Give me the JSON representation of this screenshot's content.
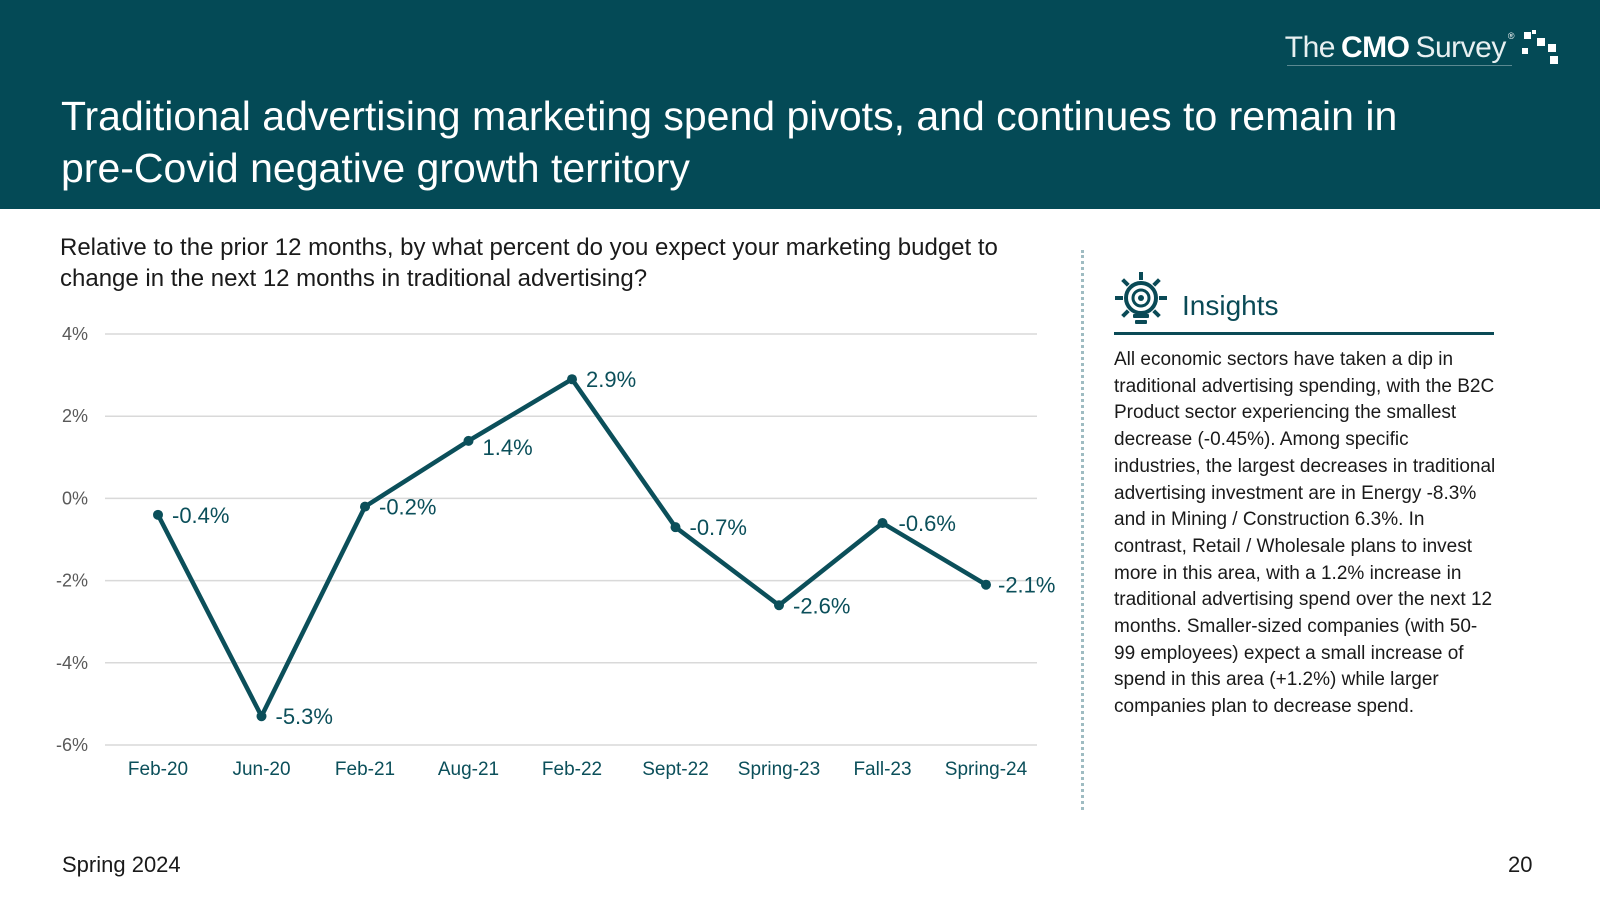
{
  "brand": {
    "the": "The",
    "cmo": "CMO",
    "survey": "Survey",
    "reg": "®"
  },
  "title": "Traditional advertising marketing spend pivots, and continues to remain in pre-Covid negative growth territory",
  "question": "Relative to the prior 12 months, by what percent do you expect your marketing budget to change in the next 12 months in traditional advertising?",
  "insights": {
    "title": "Insights",
    "icon": "lightbulb-gear-icon",
    "body": "All economic sectors have taken a dip in traditional advertising spending, with the B2C Product sector experiencing the smallest decrease (-0.45%). Among specific industries, the largest decreases in traditional advertising investment are in Energy -8.3% and in Mining / Construction 6.3%. In contrast, Retail / Wholesale plans to invest more in this area, with a 1.2% increase in traditional advertising spend over the next 12 months. Smaller-sized companies (with 50-99 employees) expect a small increase of spend in this area (+1.2%) while larger companies plan to decrease spend."
  },
  "footer": {
    "left": "Spring 2024",
    "page": "20"
  },
  "colors": {
    "header": "#044a56",
    "line": "#0b4f5a",
    "tick": "#0b4f5a",
    "grid": "#d9d9d9"
  },
  "chart_data": {
    "type": "line",
    "title": "",
    "xlabel": "",
    "ylabel": "",
    "categories": [
      "Feb-20",
      "Jun-20",
      "Feb-21",
      "Aug-21",
      "Feb-22",
      "Sept-22",
      "Spring-23",
      "Fall-23",
      "Spring-24"
    ],
    "series": [
      {
        "name": "Traditional advertising",
        "values": [
          -0.4,
          -5.3,
          -0.2,
          1.4,
          2.9,
          -0.7,
          -2.6,
          -0.6,
          -2.1
        ],
        "labels": [
          "-0.4%",
          "-5.3%",
          "-0.2%",
          "1.4%",
          "2.9%",
          "-0.7%",
          "-2.6%",
          "-0.6%",
          "-2.1%"
        ]
      }
    ],
    "ylim": [
      -6,
      4
    ],
    "yticks": [
      4,
      2,
      0,
      -2,
      -4,
      -6
    ],
    "ytick_labels": [
      "4%",
      "2%",
      "0%",
      "-2%",
      "-4%",
      "-6%"
    ],
    "grid": true,
    "legend": "none"
  }
}
